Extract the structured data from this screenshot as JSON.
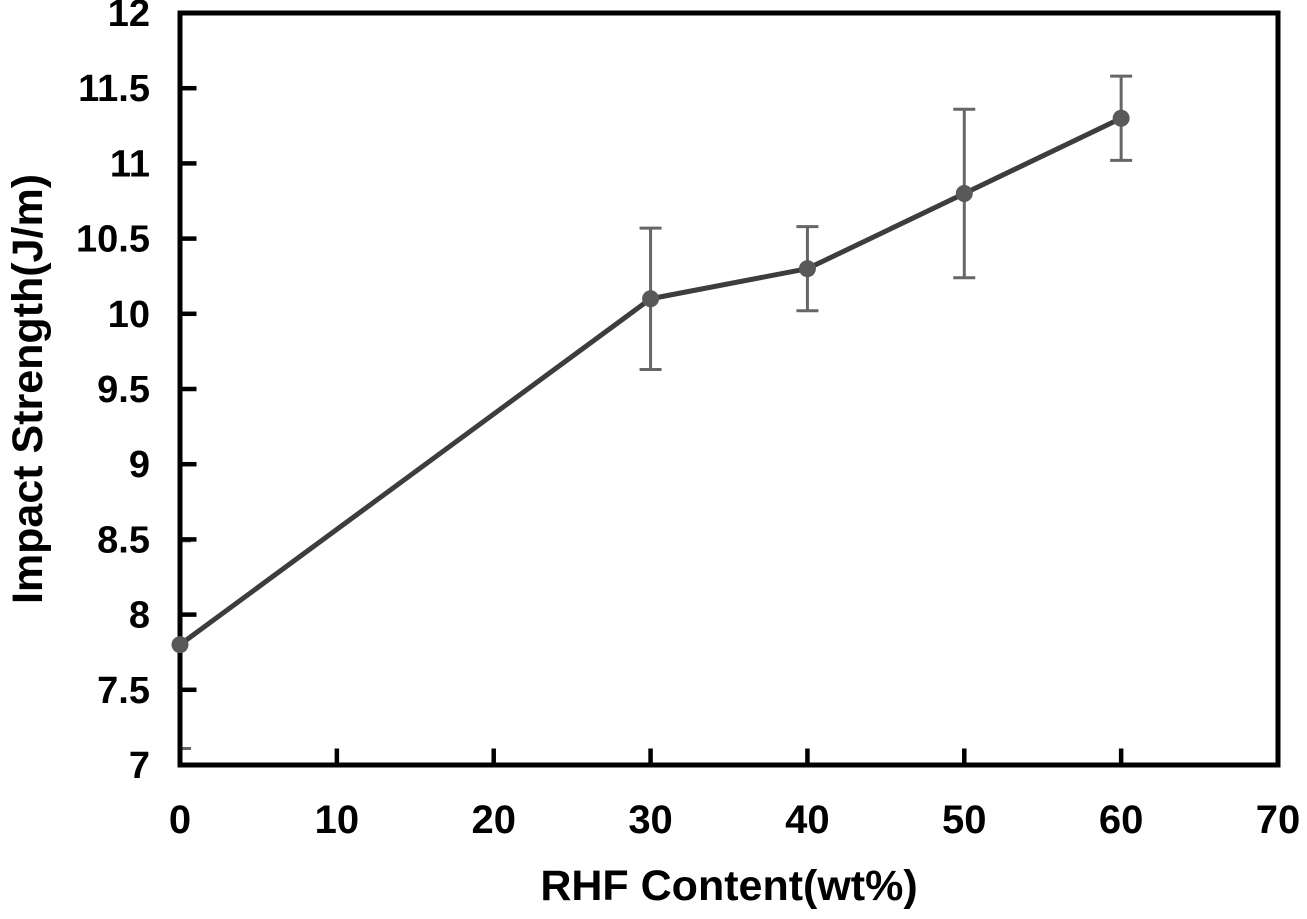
{
  "figure": {
    "background": "#ffffff"
  },
  "chart_data": {
    "type": "line",
    "title": "",
    "xlabel": "RHF Content(wt%)",
    "ylabel": "Impact Strength(J/m)",
    "x": [
      0,
      30,
      40,
      50,
      60
    ],
    "series": [
      {
        "name": "Impact Strength",
        "values": [
          7.8,
          10.1,
          10.3,
          10.8,
          11.3
        ],
        "error": [
          0.69,
          0.47,
          0.28,
          0.56,
          0.28
        ]
      }
    ],
    "xlim": [
      0,
      70
    ],
    "ylim": [
      7,
      12
    ],
    "xticks": [
      0,
      10,
      20,
      30,
      40,
      50,
      60,
      70
    ],
    "yticks": [
      7,
      7.5,
      8,
      8.5,
      9,
      9.5,
      10,
      10.5,
      11,
      11.5,
      12
    ],
    "grid": false,
    "legend": "none",
    "colors": {
      "line": "#3d3d3d",
      "marker": "#595959",
      "error_bar": "#666666",
      "axis": "#000000"
    }
  }
}
